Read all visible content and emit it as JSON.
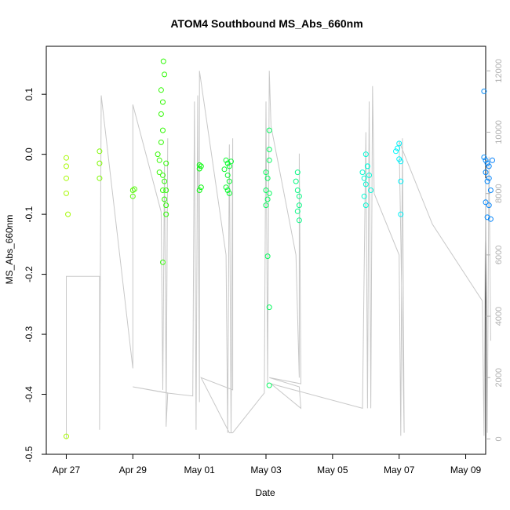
{
  "chart_data": {
    "type": "scatter",
    "title": "ATOM4 Southbound MS_Abs_660nm",
    "xlabel": "Date",
    "ylabel": "MS_Abs_660nm",
    "x_ticks": [
      "Apr 27",
      "Apr 29",
      "May 01",
      "May 03",
      "May 05",
      "May 07",
      "May 09"
    ],
    "y_ticks": [
      "-0.5",
      "-0.4",
      "-0.3",
      "-0.2",
      "-0.1",
      "0.0",
      "0.1"
    ],
    "y2_ticks": [
      "0",
      "2000",
      "4000",
      "6000",
      "8000",
      "10000",
      "12000"
    ],
    "xlim_days": [
      -0.6,
      12.6
    ],
    "ylim": [
      -0.5,
      0.18
    ],
    "y2lim": [
      -500,
      12800
    ],
    "grid": false,
    "secondary_series_color": "#c8c8c8",
    "points": [
      [
        0.0,
        -0.006
      ],
      [
        0.0,
        -0.02
      ],
      [
        0.0,
        -0.04
      ],
      [
        0.0,
        -0.065
      ],
      [
        0.05,
        -0.1
      ],
      [
        0.0,
        -0.47
      ],
      [
        1.0,
        0.005
      ],
      [
        1.0,
        -0.015
      ],
      [
        1.0,
        -0.04
      ],
      [
        2.0,
        -0.06
      ],
      [
        2.05,
        -0.058
      ],
      [
        2.0,
        -0.07
      ],
      [
        2.75,
        0.0
      ],
      [
        2.8,
        -0.01
      ],
      [
        2.85,
        0.02
      ],
      [
        2.9,
        0.04
      ],
      [
        2.85,
        0.067
      ],
      [
        2.9,
        0.087
      ],
      [
        2.85,
        0.107
      ],
      [
        2.95,
        0.133
      ],
      [
        2.92,
        0.155
      ],
      [
        2.8,
        -0.03
      ],
      [
        2.9,
        -0.035
      ],
      [
        2.95,
        -0.045
      ],
      [
        2.9,
        -0.06
      ],
      [
        3.0,
        -0.06
      ],
      [
        2.95,
        -0.075
      ],
      [
        3.0,
        -0.085
      ],
      [
        3.0,
        -0.1
      ],
      [
        3.0,
        -0.015
      ],
      [
        2.9,
        -0.18
      ],
      [
        4.0,
        -0.018
      ],
      [
        4.05,
        -0.02
      ],
      [
        4.0,
        -0.024
      ],
      [
        4.05,
        -0.055
      ],
      [
        4.0,
        -0.06
      ],
      [
        4.8,
        -0.01
      ],
      [
        4.85,
        -0.015
      ],
      [
        4.9,
        -0.02
      ],
      [
        4.75,
        -0.025
      ],
      [
        4.85,
        -0.035
      ],
      [
        4.9,
        -0.045
      ],
      [
        4.8,
        -0.055
      ],
      [
        4.85,
        -0.06
      ],
      [
        4.9,
        -0.065
      ],
      [
        4.95,
        -0.012
      ],
      [
        6.0,
        -0.03
      ],
      [
        6.05,
        -0.04
      ],
      [
        6.0,
        -0.06
      ],
      [
        6.1,
        -0.065
      ],
      [
        6.05,
        -0.075
      ],
      [
        6.0,
        -0.085
      ],
      [
        6.1,
        0.04
      ],
      [
        6.1,
        0.008
      ],
      [
        6.1,
        -0.01
      ],
      [
        6.05,
        -0.17
      ],
      [
        6.1,
        -0.255
      ],
      [
        6.1,
        -0.385
      ],
      [
        6.9,
        -0.045
      ],
      [
        6.95,
        -0.06
      ],
      [
        7.0,
        -0.07
      ],
      [
        6.95,
        -0.095
      ],
      [
        7.0,
        -0.11
      ],
      [
        6.95,
        -0.03
      ],
      [
        7.0,
        -0.085
      ],
      [
        8.9,
        -0.03
      ],
      [
        8.95,
        -0.04
      ],
      [
        9.0,
        -0.05
      ],
      [
        8.95,
        -0.07
      ],
      [
        9.0,
        -0.085
      ],
      [
        9.05,
        -0.02
      ],
      [
        9.1,
        -0.035
      ],
      [
        9.15,
        -0.06
      ],
      [
        9.0,
        0.0
      ],
      [
        9.05,
        -0.02
      ],
      [
        9.9,
        0.005
      ],
      [
        9.95,
        0.01
      ],
      [
        10.0,
        0.018
      ],
      [
        10.05,
        -0.012
      ],
      [
        10.0,
        -0.008
      ],
      [
        10.05,
        -0.045
      ],
      [
        10.05,
        -0.1
      ],
      [
        12.55,
        0.105
      ],
      [
        12.55,
        -0.005
      ],
      [
        12.6,
        -0.01
      ],
      [
        12.65,
        -0.015
      ],
      [
        12.7,
        -0.02
      ],
      [
        12.6,
        -0.03
      ],
      [
        12.7,
        -0.04
      ],
      [
        12.65,
        -0.045
      ],
      [
        12.75,
        -0.06
      ],
      [
        12.6,
        -0.08
      ],
      [
        12.7,
        -0.085
      ],
      [
        12.65,
        -0.105
      ],
      [
        12.75,
        -0.108
      ],
      [
        12.8,
        -0.01
      ]
    ],
    "secondary_line": [
      [
        0.0,
        2800
      ],
      [
        0.0,
        0
      ],
      [
        0.0,
        5300
      ],
      [
        1.0,
        5300
      ],
      [
        1.0,
        300
      ],
      [
        1.05,
        11200
      ],
      [
        2.0,
        2300
      ],
      [
        2.0,
        10900
      ],
      [
        2.85,
        7400
      ],
      [
        2.9,
        1600
      ],
      [
        2.95,
        8900
      ],
      [
        3.0,
        1500
      ],
      [
        3.05,
        9800
      ],
      [
        3.0,
        400
      ],
      [
        3.05,
        1500
      ],
      [
        2.0,
        1700
      ],
      [
        3.0,
        1500
      ],
      [
        3.8,
        1400
      ],
      [
        3.85,
        11000
      ],
      [
        3.9,
        300
      ],
      [
        3.95,
        11200
      ],
      [
        4.0,
        1200
      ],
      [
        4.0,
        12000
      ],
      [
        4.8,
        6000
      ],
      [
        4.85,
        200
      ],
      [
        4.9,
        9600
      ],
      [
        4.95,
        200
      ],
      [
        5.0,
        9800
      ],
      [
        5.0,
        1600
      ],
      [
        4.05,
        2000
      ],
      [
        4.9,
        200
      ],
      [
        5.0,
        200
      ],
      [
        5.95,
        1500
      ],
      [
        6.0,
        11000
      ],
      [
        6.05,
        1800
      ],
      [
        6.1,
        12000
      ],
      [
        6.15,
        10200
      ],
      [
        6.9,
        6000
      ],
      [
        7.0,
        2000
      ],
      [
        7.0,
        9300
      ],
      [
        7.05,
        1800
      ],
      [
        6.1,
        2000
      ],
      [
        7.0,
        1700
      ],
      [
        7.05,
        1000
      ],
      [
        6.15,
        1800
      ],
      [
        8.9,
        1000
      ],
      [
        9.0,
        10000
      ],
      [
        9.05,
        1000
      ],
      [
        9.1,
        11000
      ],
      [
        9.15,
        1000
      ],
      [
        9.2,
        11500
      ],
      [
        9.25,
        8000
      ],
      [
        10.0,
        6000
      ],
      [
        10.05,
        100
      ],
      [
        10.1,
        9800
      ],
      [
        10.15,
        200
      ],
      [
        10.0,
        9700
      ],
      [
        11.0,
        7000
      ],
      [
        12.5,
        4500
      ],
      [
        12.55,
        100
      ],
      [
        12.6,
        8500
      ],
      [
        12.65,
        200
      ],
      [
        12.7,
        9200
      ],
      [
        12.75,
        3200
      ]
    ]
  }
}
